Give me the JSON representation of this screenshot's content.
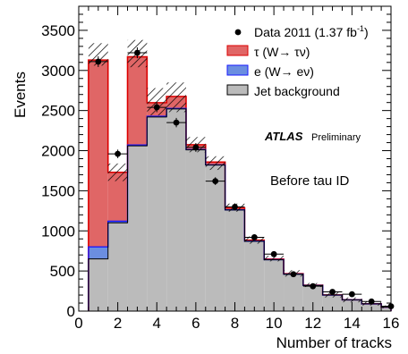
{
  "chart_data": {
    "type": "bar",
    "stacked": true,
    "ylabel": "Events",
    "xlabel": "Number of tracks",
    "xlim": [
      0,
      16
    ],
    "ylim": [
      0,
      3800
    ],
    "x_ticks": [
      0,
      2,
      4,
      6,
      8,
      10,
      12,
      14,
      16
    ],
    "y_ticks": [
      0,
      500,
      1000,
      1500,
      2000,
      2500,
      3000,
      3500
    ],
    "bin_edges": [
      0.5,
      1.5,
      2.5,
      3.5,
      4.5,
      5.5,
      6.5,
      7.5,
      8.5,
      9.5,
      10.5,
      11.5,
      12.5,
      13.5,
      14.5,
      15.5,
      16.5
    ],
    "series": [
      {
        "name": "Jet background",
        "color": "#bbbbbb",
        "values": [
          650,
          1100,
          2060,
          2420,
          2520,
          2010,
          1820,
          1260,
          870,
          640,
          460,
          320,
          200,
          140,
          90,
          50
        ]
      },
      {
        "name": "e (W→ eν)",
        "color": "#6b8ee0",
        "values": [
          150,
          20,
          10,
          8,
          6,
          4,
          3,
          2,
          2,
          1,
          1,
          0,
          0,
          0,
          0,
          0
        ]
      },
      {
        "name": "τ (W→ τν)",
        "color": "#e06666",
        "values": [
          2330,
          610,
          1100,
          170,
          150,
          60,
          35,
          25,
          12,
          8,
          5,
          3,
          2,
          1,
          1,
          0
        ]
      }
    ],
    "uncertainty_band": {
      "upper": [
        3340,
        1840,
        3380,
        2780,
        2850,
        2170,
        1930,
        1340,
        930,
        690,
        510,
        350,
        240,
        170,
        120,
        70
      ],
      "lower": [
        3060,
        1620,
        3040,
        2440,
        2480,
        1980,
        1760,
        1240,
        840,
        620,
        430,
        300,
        170,
        110,
        70,
        35
      ]
    },
    "data_points": {
      "name": "Data 2011 (1.37 fb-1)",
      "x": [
        1,
        2,
        3,
        4,
        5,
        6,
        7,
        8,
        9,
        10,
        11,
        12,
        13,
        14,
        15,
        16
      ],
      "y": [
        3110,
        1960,
        3220,
        2540,
        2350,
        2040,
        1620,
        1300,
        920,
        710,
        460,
        310,
        240,
        210,
        120,
        60
      ]
    },
    "legend": {
      "placement": "top-right",
      "entries": [
        {
          "label": "Data 2011 (1.37 fb",
          "sup": "-1",
          "suffix": ")"
        },
        {
          "label": "τ (W→ τν)"
        },
        {
          "label": "e (W→ eν)"
        },
        {
          "label": "Jet background"
        }
      ]
    },
    "annotations": {
      "experiment": "ATLAS",
      "status": "Preliminary",
      "cut_label": "Before tau ID"
    },
    "colors": {
      "tau_line": "#dd0000",
      "electron_line": "#1a1aff",
      "jet_line": "#000000"
    }
  }
}
